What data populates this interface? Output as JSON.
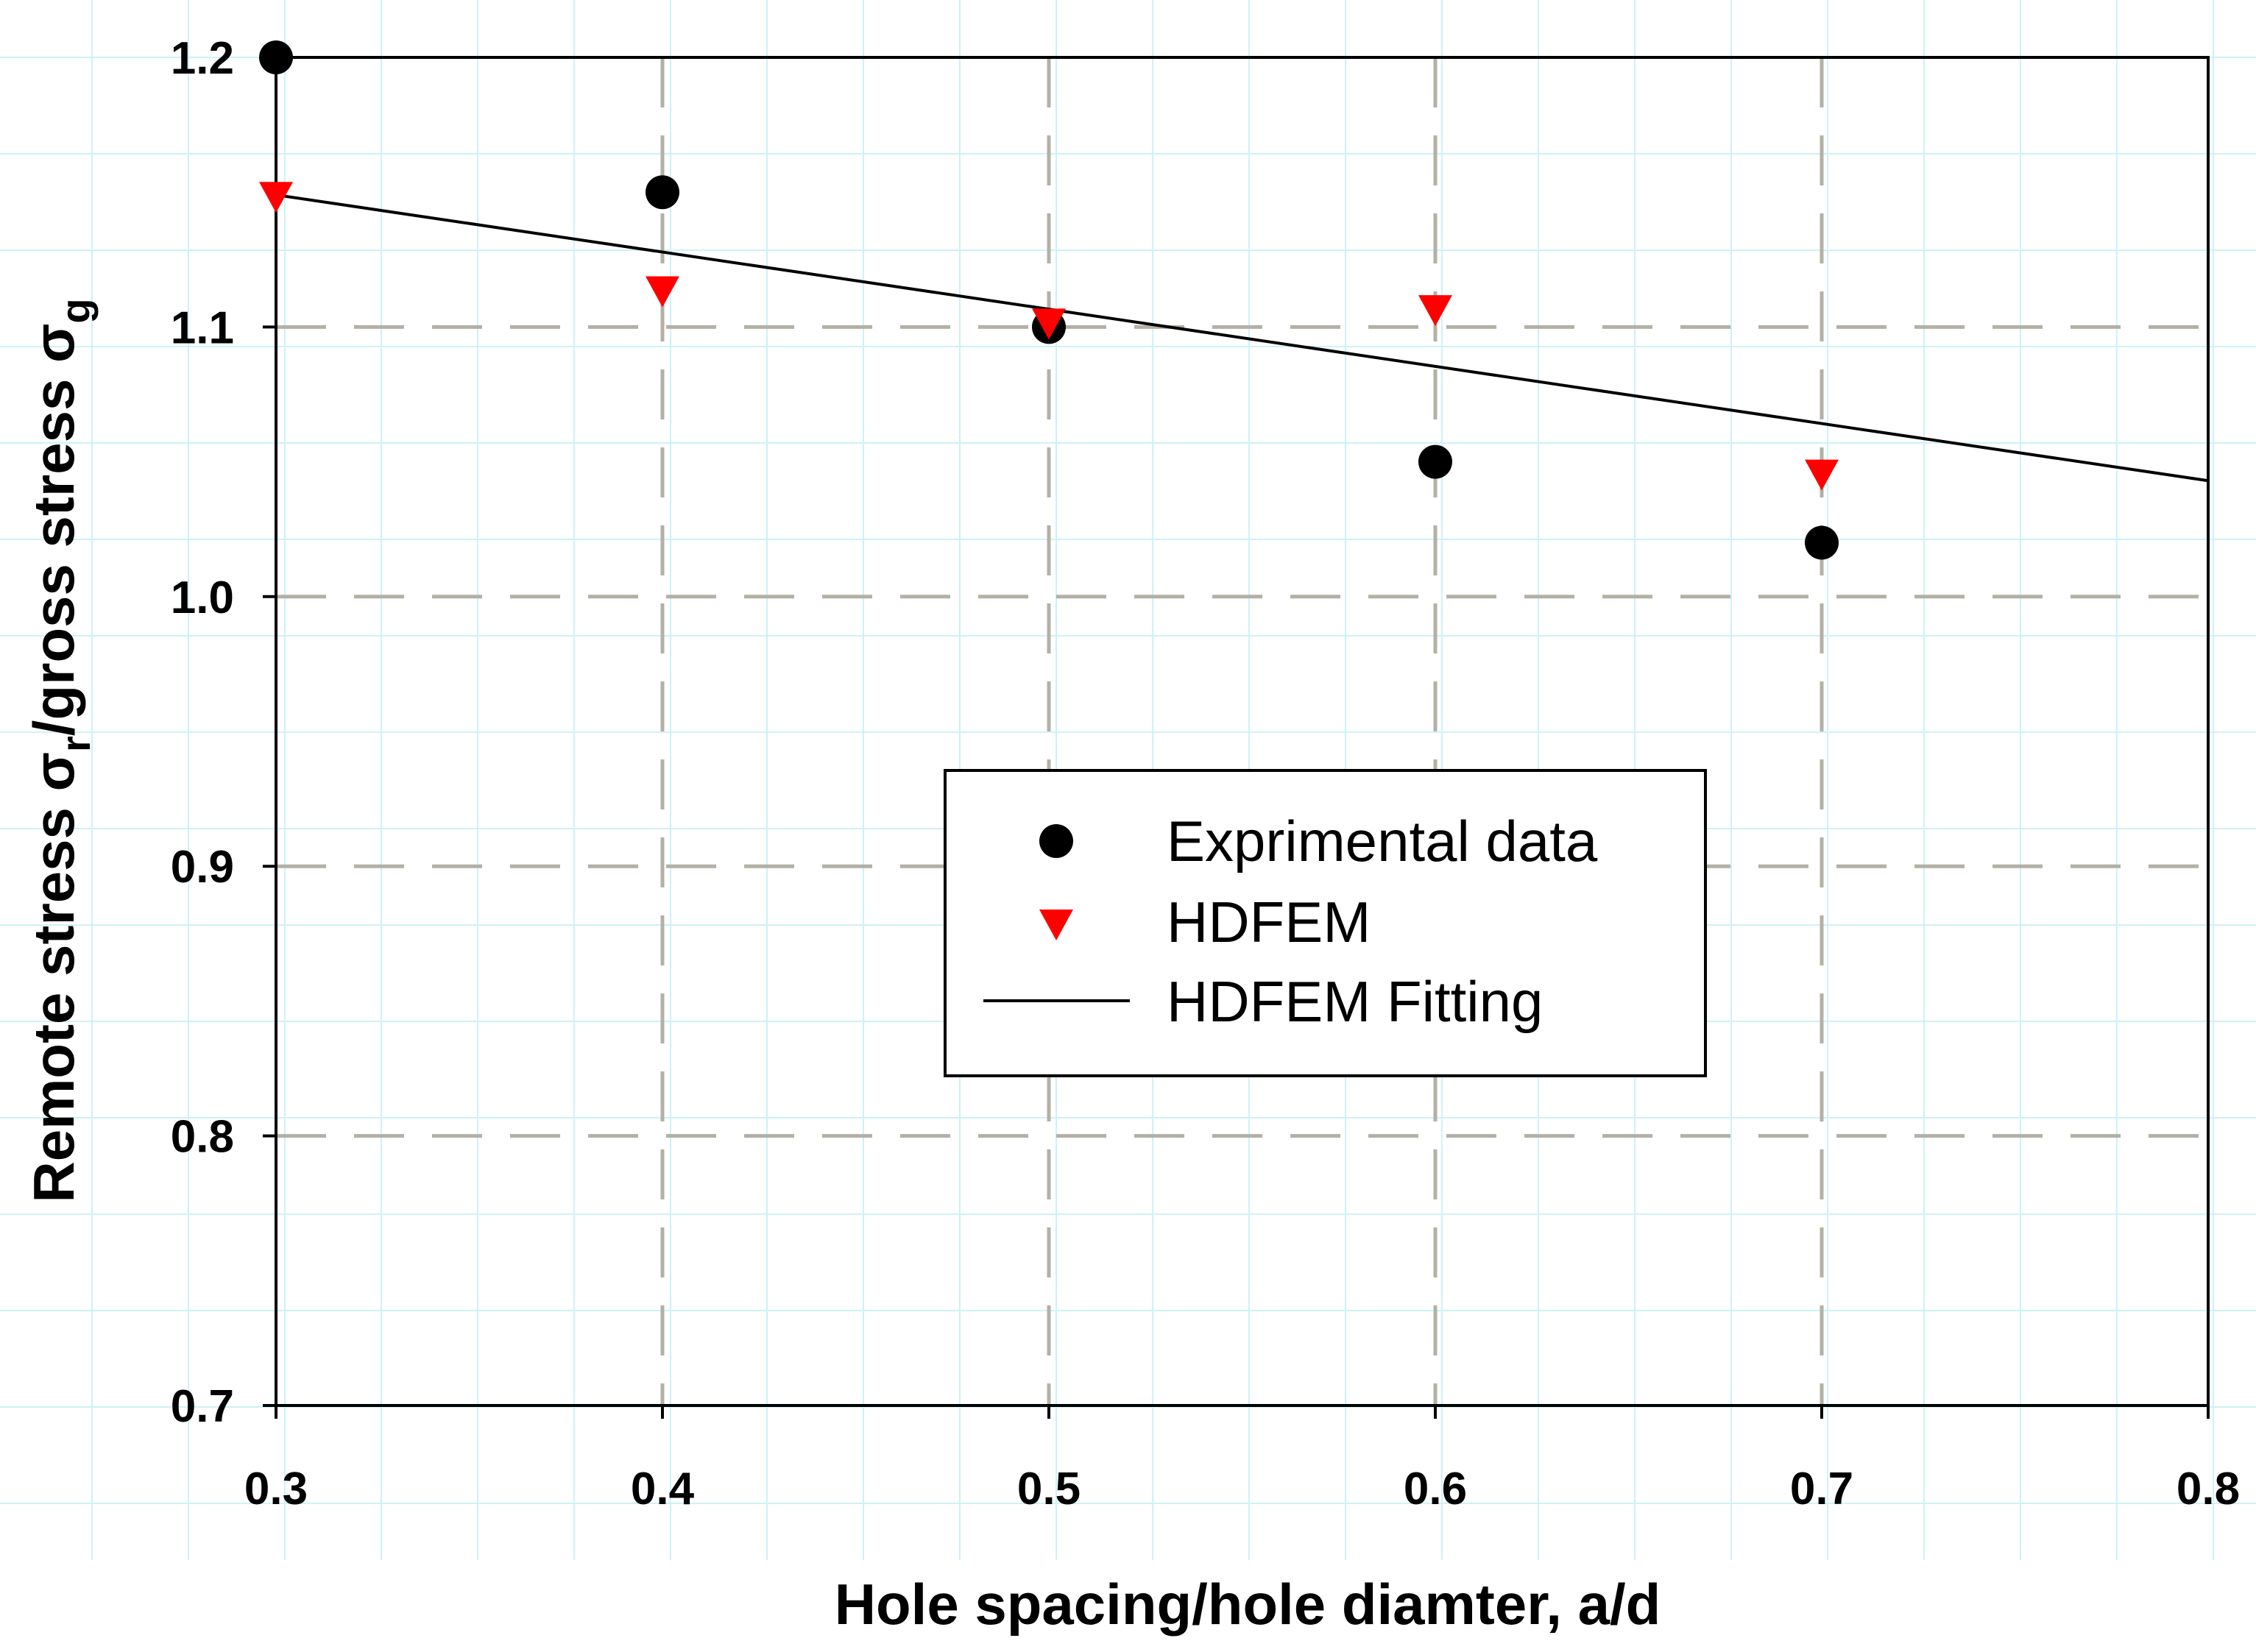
{
  "chart_data": {
    "type": "scatter",
    "title": "",
    "xlabel": "Hole spacing/hole diamter, a/d",
    "ylabel": {
      "prefix": "Remote stress ",
      "sym1": "σ",
      "sub1": "r",
      "middle": "/gross stress ",
      "sym2": "σ",
      "sub2": "g"
    },
    "xlim": [
      0.3,
      0.8
    ],
    "ylim": [
      0.7,
      1.2
    ],
    "xticks": [
      0.3,
      0.4,
      0.5,
      0.6,
      0.7,
      0.8
    ],
    "xtick_labels": [
      "0.3",
      "0.4",
      "0.5",
      "0.6",
      "0.7",
      "0.8"
    ],
    "yticks": [
      0.7,
      0.8,
      0.9,
      1.0,
      1.1,
      1.2
    ],
    "ytick_labels": [
      "0.7",
      "0.8",
      "0.9",
      "1.0",
      "1.1",
      "1.2"
    ],
    "grid": true,
    "series": [
      {
        "name": "Exprimental data",
        "kind": "points",
        "marker": "circle",
        "color": "#000000",
        "x": [
          0.3,
          0.4,
          0.5,
          0.6,
          0.7
        ],
        "y": [
          1.2,
          1.15,
          1.1,
          1.05,
          1.02
        ]
      },
      {
        "name": "HDFEM",
        "kind": "points",
        "marker": "triangle-down",
        "color": "#ff0000",
        "x": [
          0.3,
          0.4,
          0.5,
          0.6,
          0.7
        ],
        "y": [
          1.15,
          1.115,
          1.103,
          1.108,
          1.047
        ]
      },
      {
        "name": "HDFEM Fitting",
        "kind": "line",
        "color": "#000000",
        "x": [
          0.3,
          0.8
        ],
        "y": [
          1.149,
          1.043
        ]
      }
    ],
    "legend": {
      "position": "center-right",
      "entries": [
        "Exprimental data",
        "HDFEM",
        "HDFEM Fitting"
      ]
    }
  }
}
